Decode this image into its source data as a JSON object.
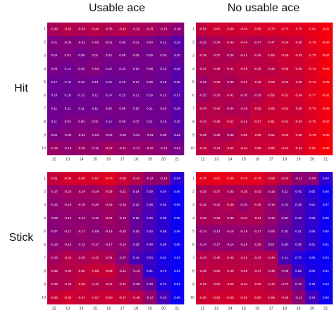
{
  "chart_data": {
    "type": "heatmap",
    "column_titles": [
      "Usable ace",
      "No usable ace"
    ],
    "row_titles": [
      "Hit",
      "Stick"
    ],
    "x": [
      12,
      13,
      14,
      15,
      16,
      17,
      18,
      19,
      20,
      21
    ],
    "y": [
      1,
      2,
      3,
      4,
      5,
      6,
      7,
      8,
      9,
      10
    ],
    "zlim": [
      -1,
      1
    ],
    "color_low": "#ff0000",
    "color_high": "#0000ff",
    "panels": [
      {
        "values": [
          [
            -0.3,
            -0.42,
            -0.34,
            -0.44,
            -0.35,
            -0.42,
            -0.32,
            -0.31,
            -0.23,
            -0.09
          ],
          [
            0.01,
            -0.03,
            -0.01,
            -0.05,
            -0.01,
            0.05,
            0.01,
            0.04,
            0.12,
            0.29
          ],
          [
            0.04,
            0.01,
            0.08,
            0.01,
            0.03,
            0.05,
            0.06,
            0.09,
            0.04,
            0.2
          ],
          [
            0.05,
            0.14,
            0.03,
            -0.04,
            0.1,
            0.1,
            0.1,
            0.08,
            0.13,
            0.28
          ],
          [
            0.17,
            0.16,
            0.1,
            0.13,
            0.16,
            0.15,
            0.11,
            0.09,
            0.16,
            0.3
          ],
          [
            0.18,
            0.16,
            0.12,
            0.11,
            0.14,
            0.15,
            0.11,
            0.16,
            0.13,
            0.31
          ],
          [
            0.11,
            0.11,
            0.11,
            0.11,
            0.05,
            0.06,
            0.1,
            0.11,
            0.1,
            0.29
          ],
          [
            0.11,
            0.04,
            0.0,
            0.02,
            0.14,
            0.06,
            0.07,
            0.11,
            0.15,
            0.3
          ],
          [
            0.02,
            -0.02,
            -0.04,
            -0.04,
            -0.02,
            -0.03,
            -0.01,
            -0.01,
            0.06,
            0.23
          ],
          [
            -0.19,
            -0.13,
            -0.2,
            -0.15,
            -0.27,
            -0.21,
            -0.17,
            -0.15,
            -0.1,
            0.04
          ]
        ],
        "value_labels": [
          [
            "-0.30",
            "-0.42",
            "-0.34",
            "-0.44",
            "-0.35",
            "-0.42",
            "-0.32",
            "-0.31",
            "-0.23",
            "-0.09"
          ],
          [
            "0.01",
            "-0.03",
            "-0.01",
            "-0.05",
            "-0.01",
            "0.05",
            "0.01",
            "0.04",
            "0.12",
            "0.29"
          ],
          [
            "0.04",
            "0.01",
            "0.08",
            "0.01",
            "0.03",
            "0.05",
            "0.06",
            "0.09",
            "0.04",
            "0.20"
          ],
          [
            "0.05",
            "0.14",
            "0.03",
            "-0.04",
            "0.10",
            "0.10",
            "0.10",
            "0.08",
            "0.13",
            "0.28"
          ],
          [
            "0.17",
            "0.16",
            "0.10",
            "0.13",
            "0.16",
            "0.15",
            "0.11",
            "0.09",
            "0.16",
            "0.30"
          ],
          [
            "0.18",
            "0.16",
            "0.12",
            "0.11",
            "0.14",
            "0.15",
            "0.11",
            "0.16",
            "0.13",
            "0.31"
          ],
          [
            "0.11",
            "0.11",
            "0.11",
            "0.11",
            "0.05",
            "0.06",
            "0.10",
            "0.11",
            "0.10",
            "0.29"
          ],
          [
            "0.11",
            "0.04",
            "0.00",
            "0.02",
            "0.14",
            "0.06",
            "0.07",
            "0.11",
            "0.15",
            "0.30"
          ],
          [
            "0.02",
            "-0.02",
            "-0.04",
            "-0.04",
            "-0.02",
            "-0.03",
            "-0.01",
            "-0.01",
            "0.06",
            "0.23"
          ],
          [
            "-0.19",
            "-0.13",
            "-0.20",
            "-0.15",
            "-0.27",
            "-0.21",
            "-0.17",
            "-0.15",
            "-0.10",
            "0.04"
          ]
        ]
      },
      {
        "values": [
          [
            -0.52,
            -0.61,
            -0.6,
            -0.64,
            -0.68,
            -0.7,
            -0.73,
            -0.75,
            -0.81,
            -0.91
          ],
          [
            -0.25,
            -0.34,
            -0.43,
            -0.44,
            -0.37,
            -0.47,
            -0.54,
            -0.58,
            -0.78,
            -0.9
          ],
          [
            -0.39,
            -0.37,
            -0.35,
            -0.41,
            -0.45,
            -0.5,
            -0.6,
            -0.63,
            -0.73,
            -0.87
          ],
          [
            -0.37,
            -0.39,
            -0.41,
            -0.48,
            -0.45,
            -0.45,
            -0.56,
            -0.6,
            -0.74,
            -0.93
          ],
          [
            -0.22,
            -0.38,
            -0.3,
            -0.41,
            -0.48,
            -0.53,
            -0.52,
            -0.56,
            -0.74,
            -0.86
          ],
          [
            -0.25,
            -0.35,
            -0.41,
            -0.35,
            -0.39,
            -0.55,
            -0.61,
            -0.64,
            -0.77,
            -0.91
          ],
          [
            -0.4,
            -0.42,
            -0.34,
            -0.39,
            -0.52,
            -0.56,
            -0.61,
            -0.58,
            -0.73,
            -0.88
          ],
          [
            -0.43,
            -0.45,
            -0.51,
            -0.44,
            -0.57,
            -0.61,
            -0.61,
            -0.63,
            -0.75,
            -0.87
          ],
          [
            -0.39,
            -0.36,
            -0.35,
            -0.5,
            -0.56,
            -0.51,
            -0.62,
            -0.66,
            -0.78,
            -0.9
          ],
          [
            -0.49,
            -0.43,
            -0.52,
            -0.54,
            -0.58,
            -0.6,
            -0.64,
            -0.64,
            -0.81,
            -0.95
          ]
        ],
        "value_labels": [
          [
            "-0.52",
            "-0.61",
            "-0.60",
            "-0.64",
            "-0.68",
            "-0.70",
            "-0.73",
            "-0.75",
            "-0.81",
            "-0.91"
          ],
          [
            "-0.25",
            "-0.34",
            "-0.43",
            "-0.44",
            "-0.37",
            "-0.47",
            "-0.54",
            "-0.58",
            "-0.78",
            "-0.90"
          ],
          [
            "-0.39",
            "-0.37",
            "-0.35",
            "-0.41",
            "-0.45",
            "-0.50",
            "-0.60",
            "-0.63",
            "-0.73",
            "-0.87"
          ],
          [
            "-0.37",
            "-0.39",
            "-0.41",
            "-0.48",
            "-0.45",
            "-0.45",
            "-0.56",
            "-0.60",
            "-0.74",
            "-0.93"
          ],
          [
            "-0.22",
            "-0.38",
            "-0.30",
            "-0.41",
            "-0.48",
            "-0.53",
            "-0.52",
            "-0.56",
            "-0.74",
            "-0.86"
          ],
          [
            "-0.25",
            "-0.35",
            "-0.41",
            "-0.35",
            "-0.39",
            "-0.55",
            "-0.61",
            "-0.64",
            "-0.77",
            "-0.91"
          ],
          [
            "-0.40",
            "-0.42",
            "-0.34",
            "-0.39",
            "-0.52",
            "-0.56",
            "-0.61",
            "-0.58",
            "-0.73",
            "-0.88"
          ],
          [
            "-0.43",
            "-0.45",
            "-0.51",
            "-0.44",
            "-0.57",
            "-0.61",
            "-0.61",
            "-0.63",
            "-0.75",
            "-0.87"
          ],
          [
            "-0.39",
            "-0.36",
            "-0.35",
            "-0.50",
            "-0.56",
            "-0.51",
            "-0.62",
            "-0.66",
            "-0.78",
            "-0.90"
          ],
          [
            "-0.49",
            "-0.43",
            "-0.52",
            "-0.54",
            "-0.58",
            "-0.60",
            "-0.64",
            "-0.64",
            "-0.81",
            "-0.95"
          ]
        ]
      },
      {
        "values": [
          [
            -0.51,
            -0.64,
            -0.66,
            -0.67,
            -0.76,
            -0.58,
            -0.41,
            -0.14,
            -0.13,
            0.64
          ],
          [
            -0.17,
            -0.23,
            -0.24,
            -0.24,
            -0.36,
            -0.21,
            0.14,
            0.39,
            0.64,
            0.88
          ],
          [
            -0.12,
            -0.18,
            -0.19,
            -0.2,
            -0.25,
            -0.16,
            0.12,
            0.38,
            0.62,
            0.89
          ],
          [
            -0.09,
            -0.14,
            -0.14,
            -0.12,
            -0.24,
            -0.13,
            0.19,
            0.43,
            0.65,
            0.9
          ],
          [
            -0.07,
            -0.11,
            -0.17,
            -0.09,
            -0.16,
            -0.15,
            0.18,
            0.44,
            0.65,
            0.89
          ],
          [
            -0.13,
            -0.15,
            -0.13,
            -0.17,
            -0.17,
            -0.14,
            0.23,
            0.4,
            0.68,
            0.88
          ],
          [
            -0.26,
            -0.41,
            -0.35,
            -0.42,
            -0.34,
            -0.07,
            0.42,
            0.53,
            0.81,
            0.93
          ],
          [
            -0.36,
            -0.4,
            -0.5,
            -0.55,
            -0.58,
            -0.31,
            -0.13,
            0.61,
            0.79,
            0.94
          ],
          [
            -0.36,
            -0.4,
            -0.55,
            -0.42,
            -0.41,
            -0.37,
            -0.08,
            0.18,
            0.71,
            0.94
          ],
          [
            -0.56,
            -0.63,
            -0.57,
            -0.57,
            -0.6,
            -0.57,
            -0.48,
            -0.17,
            0.43,
            0.89
          ]
        ],
        "value_labels": [
          [
            "-0.51",
            "-0.64",
            "-0.66",
            "-0.67",
            "-0.76",
            "-0.58",
            "-0.41",
            "-0.14",
            "-0.13",
            "0.64"
          ],
          [
            "-0.17",
            "-0.23",
            "-0.24",
            "-0.24",
            "-0.36",
            "-0.21",
            "0.14",
            "0.39",
            "0.64",
            "0.88"
          ],
          [
            "-0.12",
            "-0.18",
            "-0.19",
            "-0.20",
            "-0.25",
            "-0.16",
            "0.12",
            "0.38",
            "0.62",
            "0.89"
          ],
          [
            "-0.09",
            "-0.14",
            "-0.14",
            "-0.12",
            "-0.24",
            "-0.13",
            "0.19",
            "0.43",
            "0.65",
            "0.90"
          ],
          [
            "-0.07",
            "-0.11",
            "-0.17",
            "-0.09",
            "-0.16",
            "-0.15",
            "0.18",
            "0.44",
            "0.65",
            "0.89"
          ],
          [
            "-0.13",
            "-0.15",
            "-0.13",
            "-0.17",
            "-0.17",
            "-0.14",
            "0.23",
            "0.40",
            "0.68",
            "0.88"
          ],
          [
            "-0.26",
            "-0.41",
            "-0.35",
            "-0.42",
            "-0.34",
            "-0.07",
            "0.42",
            "0.53",
            "0.81",
            "0.93"
          ],
          [
            "-0.36",
            "-0.40",
            "-0.50",
            "-0.55",
            "-0.58",
            "-0.31",
            "-0.13",
            "0.61",
            "0.79",
            "0.94"
          ],
          [
            "-0.36",
            "-0.40",
            "-0.55",
            "-0.42",
            "-0.41",
            "-0.37",
            "-0.08",
            "0.18",
            "0.71",
            "0.94"
          ],
          [
            "-0.56",
            "-0.63",
            "-0.57",
            "-0.57",
            "-0.60",
            "-0.57",
            "-0.48",
            "-0.17",
            "0.43",
            "0.89"
          ]
        ]
      },
      {
        "values": [
          [
            -0.78,
            -0.81,
            -0.8,
            -0.76,
            -0.76,
            -0.59,
            -0.43,
            -0.11,
            -0.09,
            0.64
          ],
          [
            -0.33,
            -0.37,
            -0.32,
            -0.35,
            -0.32,
            -0.18,
            0.11,
            0.42,
            0.65,
            0.9
          ],
          [
            -0.32,
            -0.32,
            -0.38,
            -0.2,
            -0.36,
            -0.16,
            0.15,
            0.38,
            0.61,
            0.87
          ],
          [
            -0.32,
            -0.33,
            -0.3,
            -0.34,
            -0.34,
            -0.16,
            0.09,
            0.4,
            0.63,
            0.88
          ],
          [
            -0.14,
            -0.12,
            -0.15,
            -0.18,
            -0.17,
            -0.06,
            0.2,
            0.41,
            0.65,
            0.9
          ],
          [
            -0.14,
            -0.17,
            -0.14,
            -0.16,
            -0.2,
            0.02,
            0.28,
            0.38,
            0.61,
            0.91
          ],
          [
            -0.43,
            -0.45,
            -0.46,
            -0.43,
            -0.42,
            -0.4,
            0.41,
            0.7,
            0.86,
            0.93
          ],
          [
            -0.45,
            -0.5,
            -0.49,
            -0.48,
            -0.47,
            -0.38,
            -0.09,
            0.52,
            0.8,
            0.91
          ],
          [
            -0.53,
            -0.52,
            -0.55,
            -0.54,
            -0.52,
            -0.44,
            -0.27,
            0.13,
            0.79,
            0.94
          ],
          [
            -0.6,
            -0.63,
            -0.65,
            -0.62,
            -0.6,
            -0.55,
            -0.48,
            -0.11,
            0.44,
            0.89
          ]
        ],
        "value_labels": [
          [
            "-0.78",
            "-0.81",
            "-0.80",
            "-0.76",
            "-0.76",
            "-0.59",
            "-0.43",
            "-0.11",
            "-0.09",
            "0.64"
          ],
          [
            "-0.33",
            "-0.37",
            "-0.32",
            "-0.35",
            "-0.32",
            "-0.18",
            "0.11",
            "0.42",
            "0.65",
            "0.90"
          ],
          [
            "-0.32",
            "-0.32",
            "-0.38",
            "-0.20",
            "-0.36",
            "-0.16",
            "0.15",
            "0.38",
            "0.61",
            "0.87"
          ],
          [
            "-0.32",
            "-0.33",
            "-0.30",
            "-0.34",
            "-0.34",
            "-0.16",
            "0.09",
            "0.40",
            "0.63",
            "0.88"
          ],
          [
            "-0.14",
            "-0.12",
            "-0.15",
            "-0.18",
            "-0.17",
            "-0.06",
            "0.20",
            "0.41",
            "0.65",
            "0.90"
          ],
          [
            "-0.14",
            "-0.17",
            "-0.14",
            "-0.16",
            "-0.20",
            "0.02",
            "0.28",
            "0.38",
            "0.61",
            "0.91"
          ],
          [
            "-0.43",
            "-0.45",
            "-0.46",
            "-0.43",
            "-0.42",
            "-0.40",
            "0.41",
            "0.70",
            "0.86",
            "0.93"
          ],
          [
            "-0.45",
            "-0.50",
            "-0.49",
            "-0.48",
            "-0.47",
            "-0.38",
            "-0.09",
            "0.52",
            "0.80",
            "0.91"
          ],
          [
            "-0.53",
            "-0.52",
            "-0.55",
            "-0.54",
            "-0.52",
            "-0.44",
            "-0.27",
            "0.13",
            "0.79",
            "0.94"
          ],
          [
            "-0.60",
            "-0.63",
            "-0.65",
            "-0.62",
            "-0.60",
            "-0.55",
            "-0.48",
            "-0.11",
            "0.44",
            "0.89"
          ]
        ]
      }
    ]
  }
}
